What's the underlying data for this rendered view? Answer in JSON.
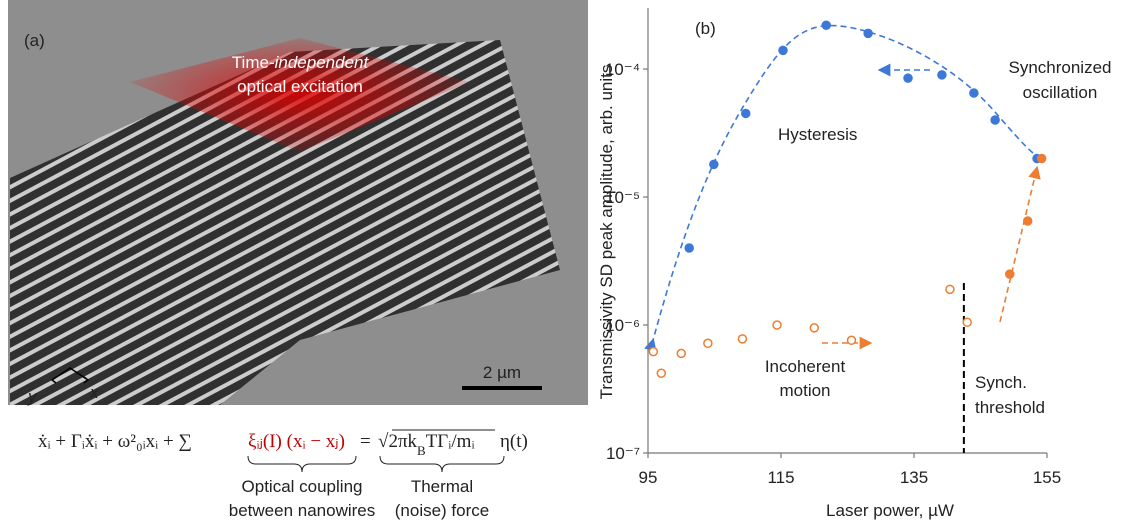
{
  "panel_a": {
    "label": "(a)",
    "excitation": [
      "Time-",
      "independent",
      "optical excitation"
    ],
    "scale_bar": "2 µm",
    "axes": [
      "y",
      "x"
    ],
    "equation": {
      "lhs": "ẋᵢ + Γᵢẋᵢ + ω²₀ᵢxᵢ + ∑",
      "coupling": "ξᵢⱼ(I) (xᵢ − xⱼ)",
      "equals": "=",
      "root": [
        "2πk",
        "B",
        "TΓᵢ/mᵢ"
      ],
      "noise": "η(t)"
    },
    "coupling_label": [
      "Optical coupling",
      "between nanowires"
    ],
    "noise_label": [
      "Thermal",
      "(noise) force"
    ]
  },
  "chart_data": {
    "type": "scatter",
    "panel": "(b)",
    "x_label": "Laser power, µW",
    "y_label": "Transmissivity SD peak amplitude, arb. units",
    "xlim": [
      95,
      155
    ],
    "xticks": [
      95,
      115,
      135,
      155
    ],
    "ylim": [
      1e-07,
      0.0003
    ],
    "log_y": true,
    "yticks": [
      {
        "value": 1e-07,
        "label": "10⁻⁷"
      },
      {
        "value": 1e-06,
        "label": "10⁻⁶"
      },
      {
        "value": 1e-05,
        "label": "10⁻⁵"
      },
      {
        "value": 0.0001,
        "label": "10⁻⁴"
      }
    ],
    "series": [
      {
        "color": "#3d78d8",
        "filled": true,
        "x": [
          101.2,
          104.9,
          109.7,
          115.3,
          121.8,
          128.1,
          134.1,
          139.2,
          144.0,
          147.2,
          153.5
        ],
        "values": [
          4e-06,
          1.8e-05,
          4.5e-05,
          0.00014,
          0.00022,
          0.00019,
          8.5e-05,
          9e-05,
          6.5e-05,
          4e-05,
          2e-05
        ]
      },
      {
        "color": "#ed7d31",
        "filled": true,
        "x": [
          149.4,
          152.1,
          154.2
        ],
        "values": [
          2.5e-06,
          6.5e-06,
          2e-05
        ]
      },
      {
        "color": "#ed7d31",
        "filled": false,
        "x": [
          95.8,
          97.0,
          100.0,
          104.0,
          109.2,
          114.4,
          120.0,
          125.6,
          140.4,
          143.0
        ],
        "values": [
          6.2e-07,
          4.2e-07,
          6e-07,
          7.2e-07,
          7.8e-07,
          1e-06,
          9.5e-07,
          7.6e-07,
          1.9e-06,
          1.05e-06
        ]
      }
    ],
    "threshold": 142.5,
    "annotations": [
      {
        "lines": [
          "Hysteresis"
        ]
      },
      {
        "lines": [
          "Synchronized",
          "oscillation"
        ]
      },
      {
        "lines": [
          "Incoherent",
          "motion"
        ]
      },
      {
        "lines": [
          "Synch.",
          "threshold"
        ]
      }
    ]
  }
}
